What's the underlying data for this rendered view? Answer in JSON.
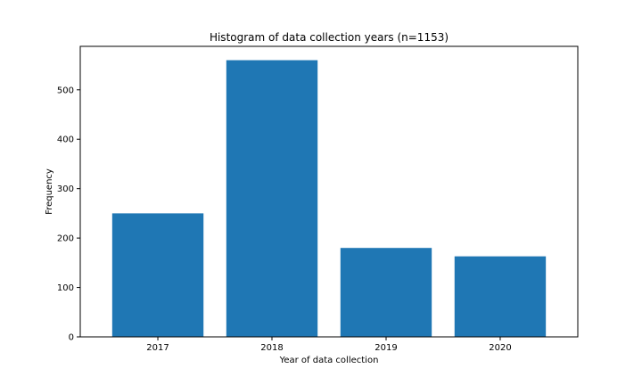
{
  "chart_data": {
    "type": "bar",
    "title": "Histogram of data collection years (n=1153)",
    "xlabel": "Year of data collection",
    "ylabel": "Frequency",
    "categories": [
      "2017",
      "2018",
      "2019",
      "2020"
    ],
    "values": [
      250,
      560,
      180,
      163
    ],
    "ylim": [
      0,
      588
    ],
    "yticks": [
      0,
      100,
      200,
      300,
      400,
      500
    ],
    "bar_color": "#1f77b4",
    "grid": false
  }
}
